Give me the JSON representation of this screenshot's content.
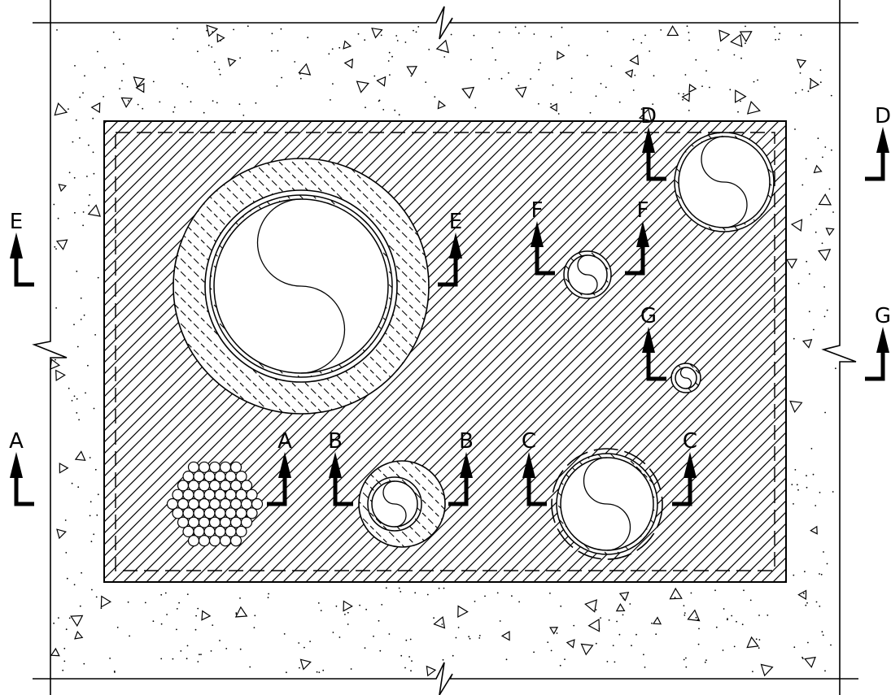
{
  "section_marks": [
    "E",
    "A",
    "E",
    "F",
    "F",
    "D",
    "D",
    "G",
    "G",
    "A",
    "B",
    "B",
    "C",
    "C"
  ]
}
